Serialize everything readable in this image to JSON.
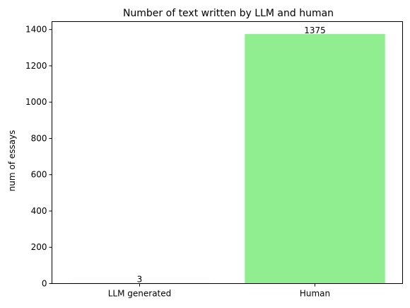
{
  "chart_data": {
    "type": "bar",
    "title": "Number of text written by LLM and human",
    "xlabel": "",
    "ylabel": "num of essays",
    "categories": [
      "LLM generated",
      "Human"
    ],
    "values": [
      3,
      1375
    ],
    "data_labels": [
      "3",
      "1375"
    ],
    "ylim": [
      0,
      1443.75
    ],
    "yticks": [
      0,
      200,
      400,
      600,
      800,
      1000,
      1200,
      1400
    ],
    "grid": false,
    "bar_color": "#90ee90"
  }
}
